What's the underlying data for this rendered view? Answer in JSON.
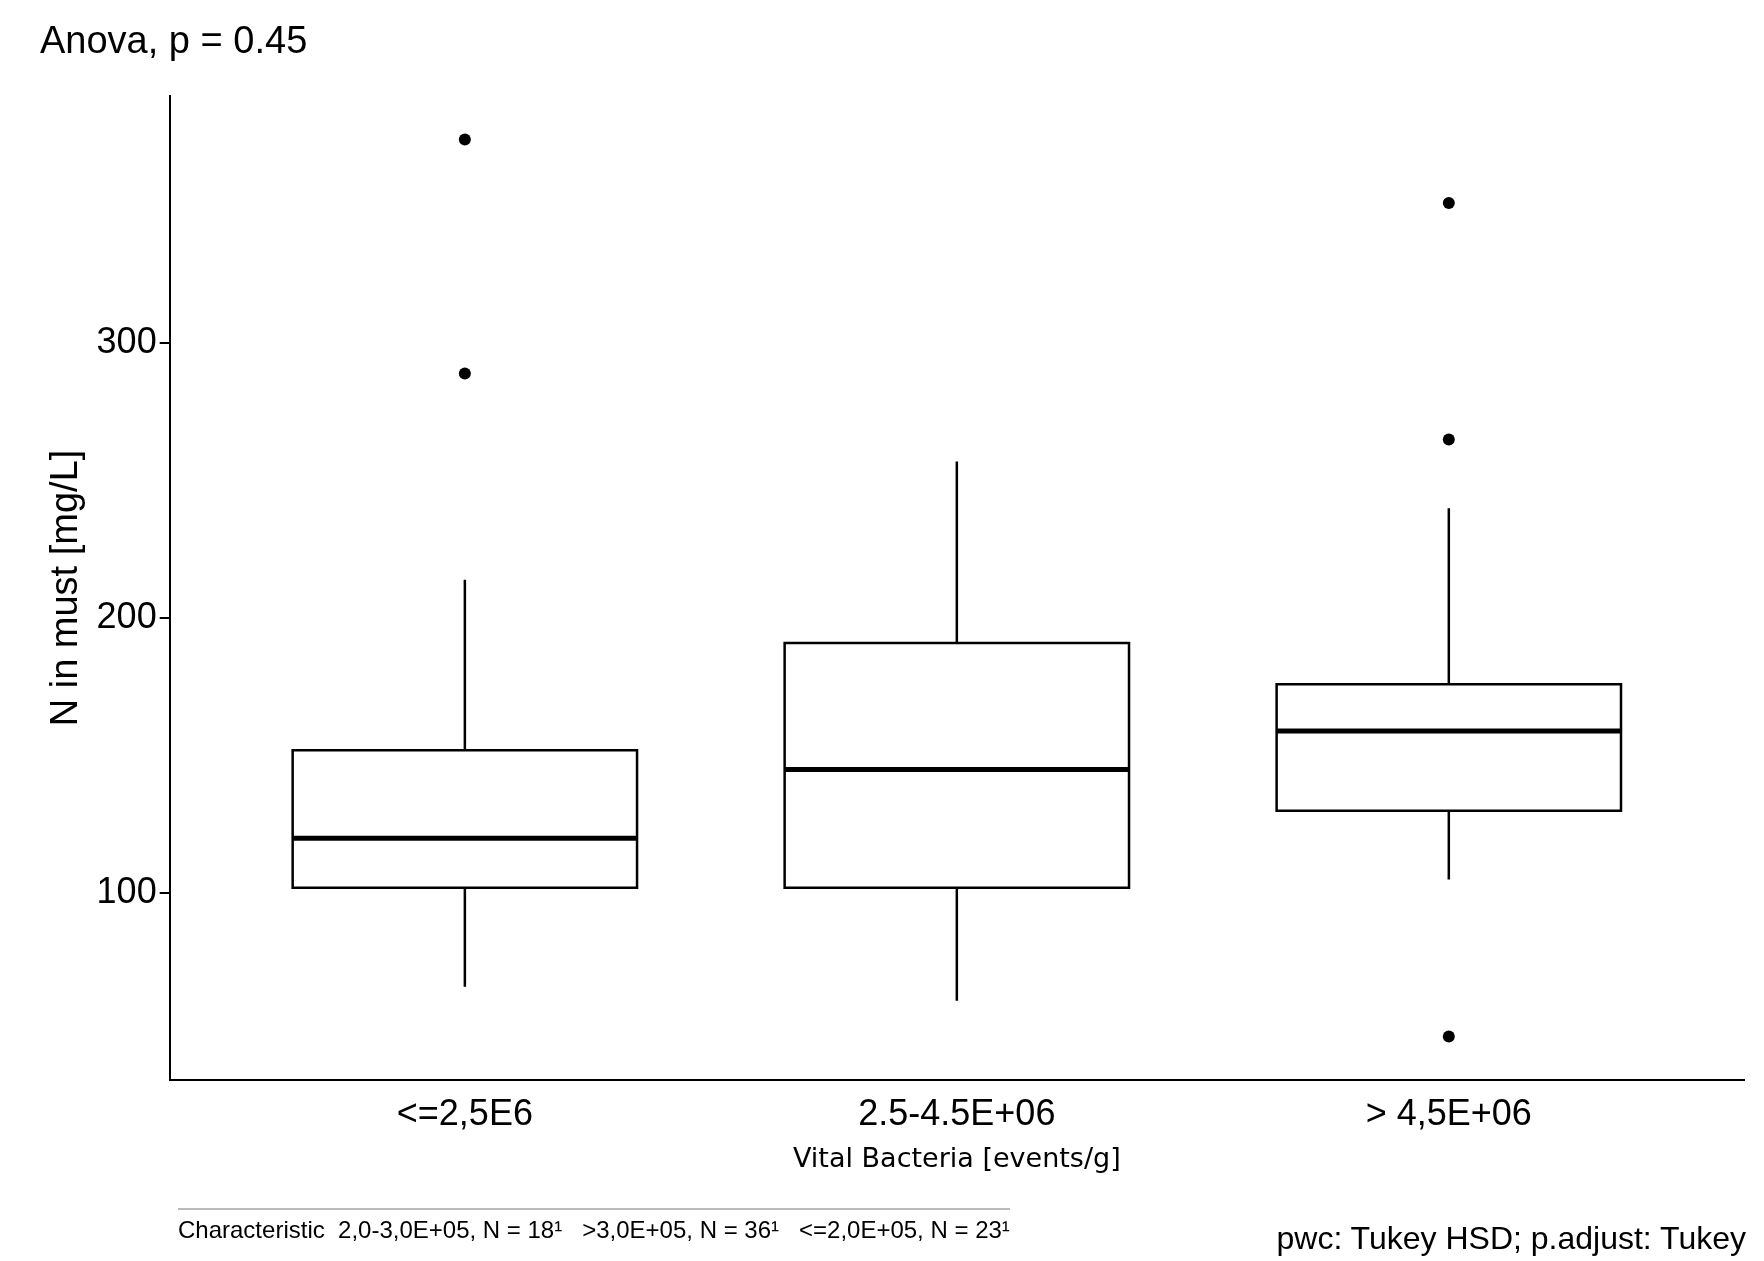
{
  "chart_data": {
    "type": "box",
    "title": "Anova, p = 0.45",
    "xlabel": "Vital Bacteria [events/g]",
    "ylabel": "N in must [mg/L]",
    "categories": [
      "<=2,5E6",
      "2.5-4.5E+06",
      "> 4,5E+06"
    ],
    "boxes": [
      {
        "low": 66,
        "q1": 102,
        "median": 120,
        "q3": 152,
        "high": 214,
        "outliers": [
          374,
          289
        ]
      },
      {
        "low": 61,
        "q1": 102,
        "median": 145,
        "q3": 191,
        "high": 257
      },
      {
        "low": 105,
        "q1": 130,
        "median": 159,
        "q3": 176,
        "high": 240,
        "outliers": [
          351,
          265,
          48
        ]
      }
    ],
    "ylim": [
      32,
      390
    ],
    "yticks": [
      100,
      200,
      300
    ],
    "grid": false,
    "legend": false,
    "annotations": [
      "Characteristic  2,0-3,0E+05, N = 18¹   >3,0E+05, N = 36¹   <=2,0E+05, N = 23¹",
      "pwc: Tukey HSD; p.adjust: Tukey"
    ]
  }
}
